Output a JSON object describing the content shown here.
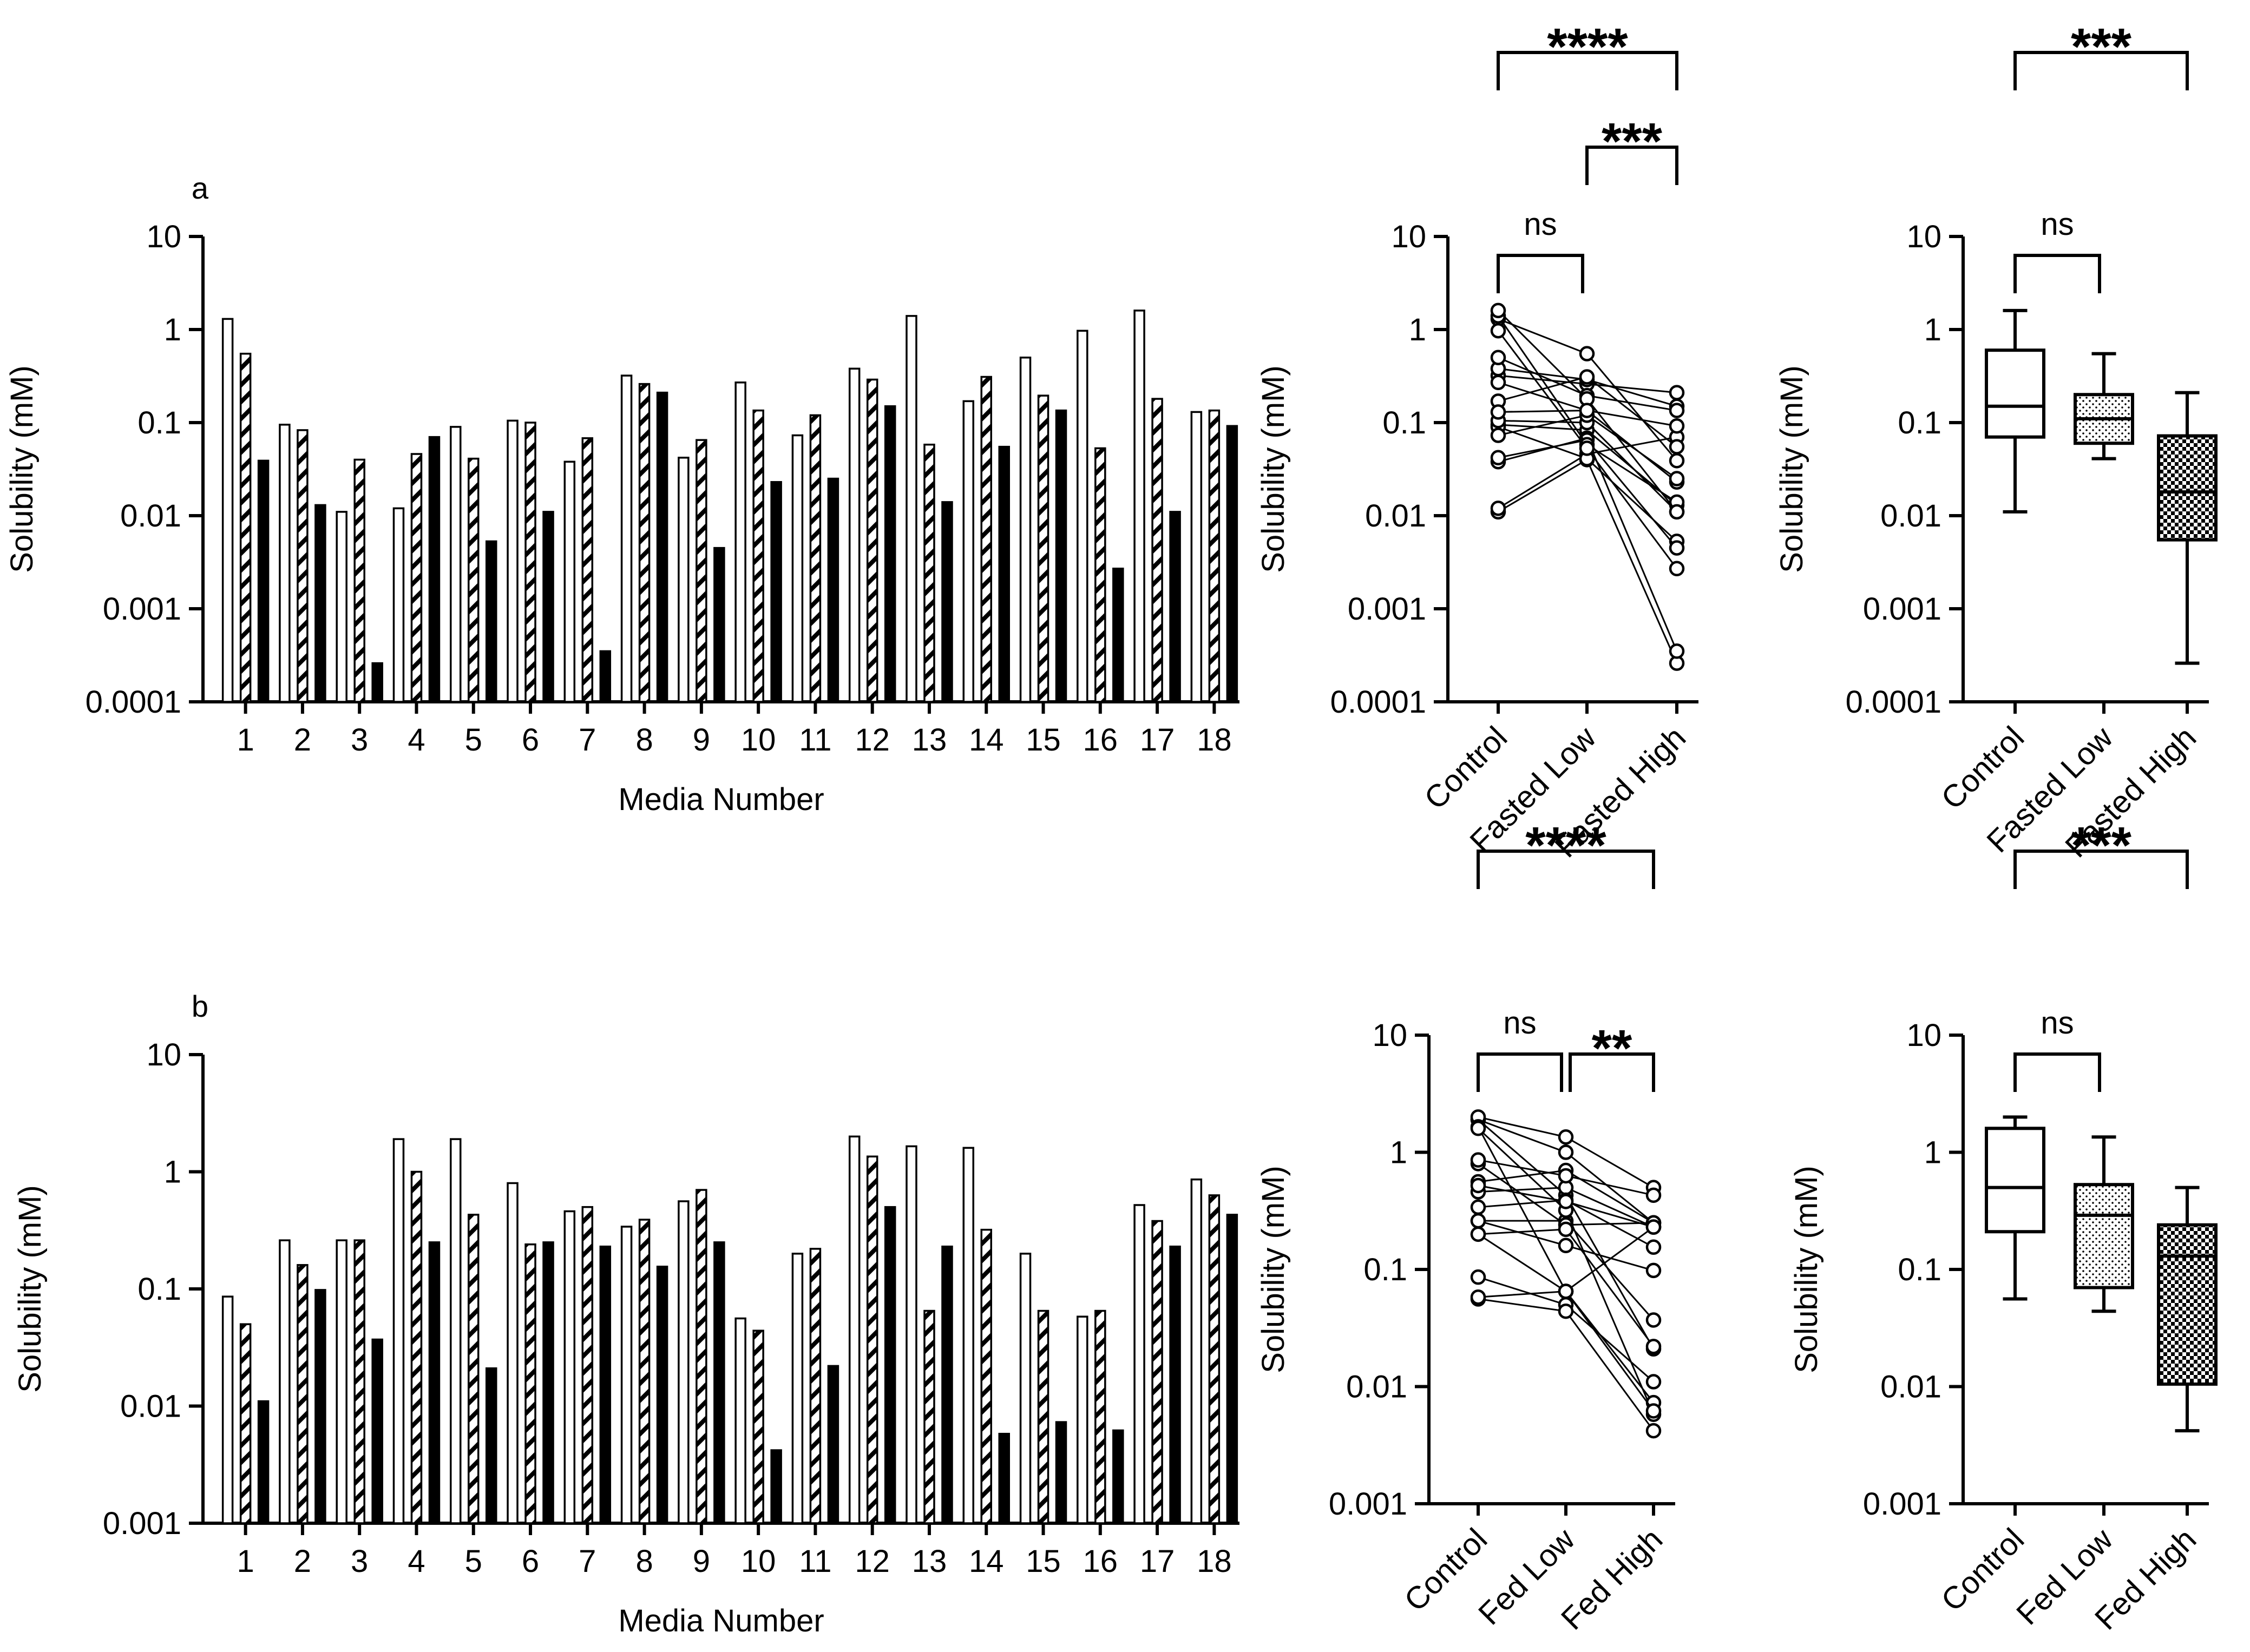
{
  "colors": {
    "ink": "#000000",
    "paper": "#ffffff"
  },
  "chart_data": [
    {
      "id": "a_bar",
      "type": "bar",
      "panel_label": "a",
      "xlabel": "Media Number",
      "ylabel": "Solubility (mM)",
      "yscale": "log",
      "ylim": [
        0.0001,
        10
      ],
      "yticks": [
        "0.0001",
        "0.001",
        "0.01",
        "0.1",
        "1",
        "10"
      ],
      "categories": [
        "1",
        "2",
        "3",
        "4",
        "5",
        "6",
        "7",
        "8",
        "9",
        "10",
        "11",
        "12",
        "13",
        "14",
        "15",
        "16",
        "17",
        "18"
      ],
      "series": [
        {
          "name": "Control",
          "pattern": "open",
          "values": [
            1.3,
            0.095,
            0.011,
            0.012,
            0.09,
            0.105,
            0.038,
            0.32,
            0.042,
            0.27,
            0.073,
            0.38,
            1.4,
            0.17,
            0.5,
            0.97,
            1.6,
            0.13
          ]
        },
        {
          "name": "Fasted Low",
          "pattern": "hatched",
          "values": [
            0.55,
            0.083,
            0.04,
            0.046,
            0.041,
            0.1,
            0.068,
            0.26,
            0.065,
            0.135,
            0.12,
            0.29,
            0.058,
            0.31,
            0.195,
            0.053,
            0.18,
            0.135
          ]
        },
        {
          "name": "Fasted High",
          "pattern": "solid",
          "values": [
            0.039,
            0.013,
            0.00026,
            0.07,
            0.0053,
            0.011,
            0.00035,
            0.21,
            0.0045,
            0.023,
            0.025,
            0.15,
            0.014,
            0.055,
            0.135,
            0.0027,
            0.011,
            0.092
          ]
        }
      ]
    },
    {
      "id": "a_paired",
      "type": "scatter",
      "ylabel": "Solubility (mM)",
      "yscale": "log",
      "ylim": [
        0.0001,
        10
      ],
      "yticks": [
        "0.0001",
        "0.001",
        "0.01",
        "0.1",
        "1",
        "10"
      ],
      "categories": [
        "Control",
        "Fasted Low",
        "Fasted High"
      ],
      "annotations": [
        {
          "text": "ns",
          "from": 0,
          "to": 1,
          "level": 0
        },
        {
          "text": "***",
          "from": 1,
          "to": 2,
          "level": 1
        },
        {
          "text": "****",
          "from": 0,
          "to": 2,
          "level": 2
        }
      ]
    },
    {
      "id": "a_box",
      "type": "box",
      "ylabel": "Solubility (mM)",
      "yscale": "log",
      "ylim": [
        0.0001,
        10
      ],
      "yticks": [
        "0.0001",
        "0.001",
        "0.01",
        "0.1",
        "1",
        "10"
      ],
      "categories": [
        "Control",
        "Fasted Low",
        "Fasted High"
      ],
      "boxes": [
        {
          "min": 0.011,
          "q1": 0.07,
          "median": 0.15,
          "q3": 0.6,
          "max": 1.6,
          "fill": "open"
        },
        {
          "min": 0.041,
          "q1": 0.06,
          "median": 0.11,
          "q3": 0.2,
          "max": 0.55,
          "fill": "dotted"
        },
        {
          "min": 0.00026,
          "q1": 0.0055,
          "median": 0.018,
          "q3": 0.072,
          "max": 0.21,
          "fill": "checkered"
        }
      ],
      "annotations": [
        {
          "text": "ns",
          "from": 0,
          "to": 1,
          "level": 0
        },
        {
          "text": "***",
          "from": 0,
          "to": 2,
          "level": 2
        }
      ]
    },
    {
      "id": "b_bar",
      "type": "bar",
      "panel_label": "b",
      "xlabel": "Media Number",
      "ylabel": "Solubility (mM)",
      "yscale": "log",
      "ylim": [
        0.001,
        10
      ],
      "yticks": [
        "0.001",
        "0.01",
        "0.1",
        "1",
        "10"
      ],
      "categories": [
        "1",
        "2",
        "3",
        "4",
        "5",
        "6",
        "7",
        "8",
        "9",
        "10",
        "11",
        "12",
        "13",
        "14",
        "15",
        "16",
        "17",
        "18"
      ],
      "series": [
        {
          "name": "Control",
          "pattern": "open",
          "values": [
            0.086,
            0.26,
            0.26,
            1.9,
            1.9,
            0.8,
            0.46,
            0.34,
            0.56,
            0.056,
            0.2,
            2.0,
            1.65,
            1.6,
            0.2,
            0.058,
            0.52,
            0.86
          ]
        },
        {
          "name": "Fed Low",
          "pattern": "hatched",
          "values": [
            0.05,
            0.16,
            0.26,
            1.0,
            0.43,
            0.24,
            0.5,
            0.39,
            0.7,
            0.044,
            0.22,
            1.35,
            0.065,
            0.32,
            0.065,
            0.065,
            0.38,
            0.63
          ]
        },
        {
          "name": "Fed High",
          "pattern": "solid",
          "values": [
            0.011,
            0.098,
            0.037,
            0.25,
            0.021,
            0.25,
            0.23,
            0.155,
            0.25,
            0.0042,
            0.022,
            0.5,
            0.23,
            0.0058,
            0.0073,
            0.0062,
            0.23,
            0.43
          ]
        }
      ]
    },
    {
      "id": "b_paired",
      "type": "scatter",
      "ylabel": "Solubility (mM)",
      "yscale": "log",
      "ylim": [
        0.001,
        10
      ],
      "yticks": [
        "0.001",
        "0.01",
        "0.1",
        "1",
        "10"
      ],
      "categories": [
        "Control",
        "Fed Low",
        "Fed High"
      ],
      "annotations": [
        {
          "text": "ns",
          "from": 0,
          "to": 1,
          "level": 0
        },
        {
          "text": "**",
          "from": 1,
          "to": 2,
          "level": 0
        },
        {
          "text": "****",
          "from": 0,
          "to": 2,
          "level": 2
        }
      ]
    },
    {
      "id": "b_box",
      "type": "box",
      "ylabel": "Solubility (mM)",
      "yscale": "log",
      "ylim": [
        0.001,
        10
      ],
      "yticks": [
        "0.001",
        "0.01",
        "0.1",
        "1",
        "10"
      ],
      "categories": [
        "Control",
        "Fed Low",
        "Fed High"
      ],
      "boxes": [
        {
          "min": 0.056,
          "q1": 0.21,
          "median": 0.5,
          "q3": 1.6,
          "max": 2.0,
          "fill": "open"
        },
        {
          "min": 0.044,
          "q1": 0.07,
          "median": 0.29,
          "q3": 0.53,
          "max": 1.35,
          "fill": "dotted"
        },
        {
          "min": 0.0042,
          "q1": 0.0105,
          "median": 0.13,
          "q3": 0.24,
          "max": 0.5,
          "fill": "checkered"
        }
      ],
      "annotations": [
        {
          "text": "ns",
          "from": 0,
          "to": 1,
          "level": 0
        },
        {
          "text": "***",
          "from": 0,
          "to": 2,
          "level": 2
        }
      ]
    }
  ]
}
